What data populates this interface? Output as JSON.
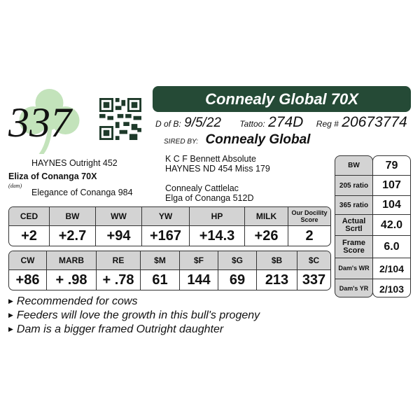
{
  "lot_number": "337",
  "title": "Connealy Global 70X",
  "dob_label": "D of B:",
  "dob": "9/5/22",
  "tattoo_label": "Tattoo:",
  "tattoo": "274D",
  "reg_label": "Reg #",
  "reg": "20673774",
  "sired_label": "SIRED BY:",
  "sire": "Connealy Global",
  "pedigree": {
    "sire_sire": "K C F Bennett Absolute",
    "sire_dam": "HAYNES ND 454 Miss 179",
    "dam_sire_sire": "Connealy Cattlelac",
    "dam_sire_dam": "Elga of Conanga 512D",
    "dam_sire": "HAYNES Outright 452",
    "dam": "Eliza of Conanga 70X",
    "dam_label": "(dam)",
    "dam_dam": "Elegance of Conanga 984"
  },
  "epd1": {
    "headers": [
      "CED",
      "BW",
      "WW",
      "YW",
      "HP",
      "MILK",
      "Our Docility Score"
    ],
    "values": [
      "+2",
      "+2.7",
      "+94",
      "+167",
      "+14.3",
      "+26",
      "2"
    ]
  },
  "epd2": {
    "headers": [
      "CW",
      "MARB",
      "RE",
      "$M",
      "$F",
      "$G",
      "$B",
      "$C"
    ],
    "values": [
      "+86",
      "+ .98",
      "+ .78",
      "61",
      "144",
      "69",
      "213",
      "337"
    ]
  },
  "side": [
    {
      "label": "BW",
      "value": "79"
    },
    {
      "label": "205 ratio",
      "value": "107"
    },
    {
      "label": "365 ratio",
      "value": "104"
    },
    {
      "label": "Actual Scrtl",
      "value": "42.0"
    },
    {
      "label": "Frame Score",
      "value": "6.0"
    },
    {
      "label": "Dam's WR",
      "value": "2/104"
    },
    {
      "label": "Dam's YR",
      "value": "2/103"
    }
  ],
  "bullets": [
    "Recommended for cows",
    "Feeders will love the growth in this bull's progeny",
    "Dam is a bigger framed Outright daughter"
  ],
  "colors": {
    "title_bar": "#254a36",
    "header_gray": "#d3d3d3",
    "shamrock": "#b5dcae"
  }
}
